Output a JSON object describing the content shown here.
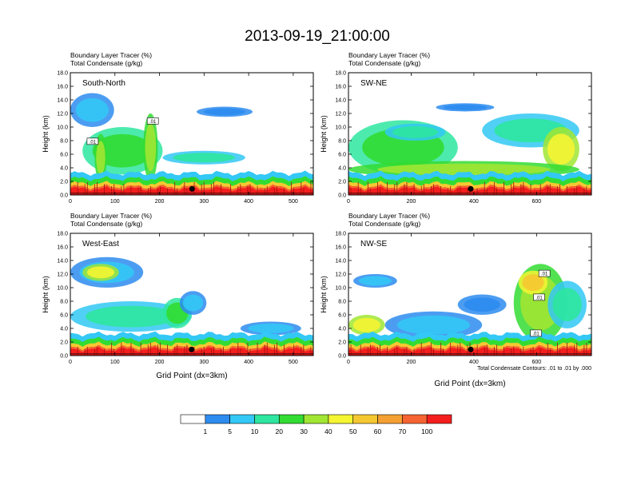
{
  "page": {
    "title": "2013-09-19_21:00:00",
    "contour_note": "Total Condensate Contours: .01 to .01 by .000",
    "colors": [
      "#ffffff",
      "#2d8cf0",
      "#33c8f5",
      "#2ee6a0",
      "#32dc32",
      "#a0e632",
      "#f5f532",
      "#f5c832",
      "#f5a032",
      "#f56432",
      "#f51e1e"
    ]
  },
  "chart_data": [
    {
      "type": "heatmap",
      "label": "South-North",
      "variables": [
        "Boundary Layer Tracer   (%)",
        "Total Condensate   (g/kg)"
      ],
      "ylabel": "Height (km)",
      "xlabel": "",
      "xlim": [
        0,
        545
      ],
      "ylim": [
        0,
        18
      ],
      "xticks": [
        "0",
        "100",
        "200",
        "300",
        "400",
        "500"
      ],
      "xtick_values": [
        0,
        100,
        200,
        300,
        400,
        500
      ],
      "yticks": [
        "0.0",
        "2.0",
        "4.0",
        "6.0",
        "8.0",
        "10.0",
        "12.0",
        "14.0",
        "16.0",
        "18.0"
      ],
      "yseed": 1,
      "marker_x": 273,
      "contour_labels": [
        {
          "text": ".01",
          "x": 185,
          "y": 10.9
        },
        {
          "text": ".01",
          "x": 50,
          "y": 7.9
        }
      ]
    },
    {
      "type": "heatmap",
      "label": "SW-NE",
      "variables": [
        "Boundary Layer Tracer   (%)",
        "Total Condensate   (g/kg)"
      ],
      "ylabel": "Height (km)",
      "xlabel": "",
      "xlim": [
        0,
        775
      ],
      "ylim": [
        0,
        18
      ],
      "xticks": [
        "0",
        "200",
        "400",
        "600"
      ],
      "xtick_values": [
        0,
        200,
        400,
        600
      ],
      "yticks": [
        "0.0",
        "2.0",
        "4.0",
        "6.0",
        "8.0",
        "10.0",
        "12.0",
        "14.0",
        "16.0",
        "18.0"
      ],
      "yseed": 2,
      "marker_x": 390,
      "contour_labels": []
    },
    {
      "type": "heatmap",
      "label": "West-East",
      "variables": [
        "Boundary Layer Tracer   (%)",
        "Total Condensate   (g/kg)"
      ],
      "ylabel": "Height (km)",
      "xlabel": "Grid Point (dx=3km)",
      "xlim": [
        0,
        545
      ],
      "ylim": [
        0,
        18
      ],
      "xticks": [
        "0",
        "100",
        "200",
        "300",
        "400",
        "500"
      ],
      "xtick_values": [
        0,
        100,
        200,
        300,
        400,
        500
      ],
      "yticks": [
        "0.0",
        "2.0",
        "4.0",
        "6.0",
        "8.0",
        "10.0",
        "12.0",
        "14.0",
        "16.0",
        "18.0"
      ],
      "yseed": 3,
      "marker_x": 272,
      "contour_labels": []
    },
    {
      "type": "heatmap",
      "label": "NW-SE",
      "variables": [
        "Boundary Layer Tracer   (%)",
        "Total Condensate   (g/kg)"
      ],
      "ylabel": "Height (km)",
      "xlabel": "Grid Point (dx=3km)",
      "xlim": [
        0,
        775
      ],
      "ylim": [
        0,
        18
      ],
      "xticks": [
        "0",
        "200",
        "400",
        "600"
      ],
      "xtick_values": [
        0,
        200,
        400,
        600
      ],
      "yticks": [
        "0.0",
        "2.0",
        "4.0",
        "6.0",
        "8.0",
        "10.0",
        "12.0",
        "14.0",
        "16.0",
        "18.0"
      ],
      "yseed": 4,
      "marker_x": 390,
      "contour_labels": [
        {
          "text": ".01",
          "x": 625,
          "y": 12.1
        },
        {
          "text": ".01",
          "x": 608,
          "y": 8.6
        },
        {
          "text": ".01",
          "x": 598,
          "y": 3.3
        }
      ]
    }
  ],
  "colorbar": {
    "labels": [
      "1",
      "5",
      "10",
      "20",
      "30",
      "40",
      "50",
      "60",
      "70",
      "100"
    ]
  }
}
